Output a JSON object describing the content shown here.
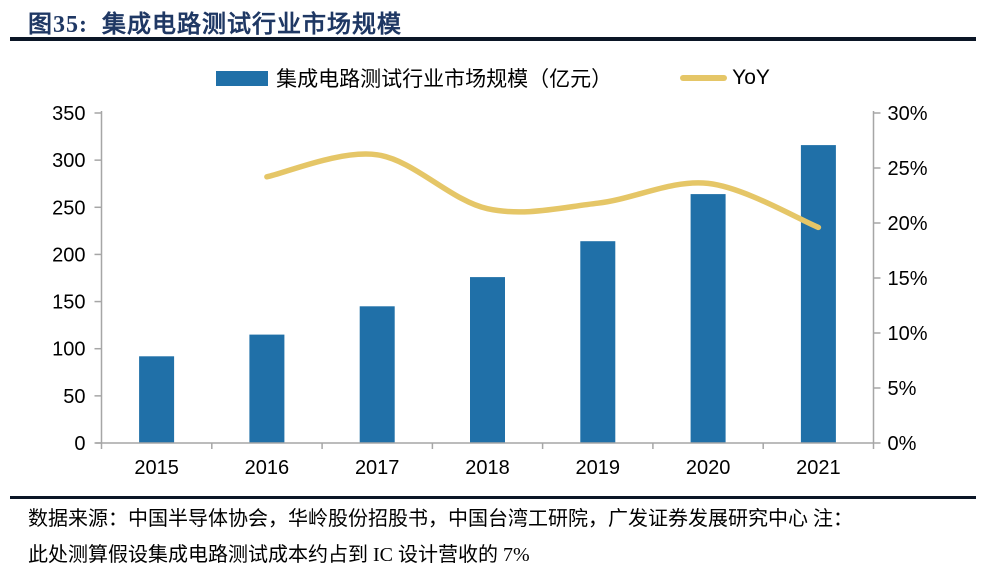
{
  "header": {
    "title_label": "图35:",
    "title_text": "集成电路测试行业市场规模"
  },
  "legend": {
    "bars_label": "集成电路测试行业市场规模（亿元）",
    "line_label": "YoY"
  },
  "chart_data": {
    "type": "bar+line combo",
    "categories": [
      "2015",
      "2016",
      "2017",
      "2018",
      "2019",
      "2020",
      "2021"
    ],
    "series": [
      {
        "name": "集成电路测试行业市场规模（亿元）",
        "type": "bar",
        "axis": "left",
        "values": [
          92,
          115,
          145,
          176,
          214,
          264,
          316
        ]
      },
      {
        "name": "YoY",
        "type": "line",
        "axis": "right",
        "values": [
          null,
          24.2,
          26.2,
          21.3,
          21.8,
          23.6,
          19.6
        ]
      }
    ],
    "left_axis": {
      "min": 0,
      "max": 350,
      "tick_values": [
        0,
        50,
        100,
        150,
        200,
        250,
        300,
        350
      ],
      "tick_labels": [
        "0",
        "50",
        "100",
        "150",
        "200",
        "250",
        "300",
        "350"
      ]
    },
    "right_axis": {
      "min": 0,
      "max": 30,
      "tick_values": [
        0,
        5,
        10,
        15,
        20,
        25,
        30
      ],
      "tick_labels": [
        "0%",
        "5%",
        "10%",
        "15%",
        "20%",
        "25%",
        "30%"
      ]
    },
    "grid": false,
    "legend_position": "top"
  },
  "colors": {
    "bar": "#2070A8",
    "line": "#E5C667",
    "title": "#1F3864",
    "axis_line": "#A6A6A6",
    "tick_text": "#000000",
    "rule": "#0B1626"
  },
  "footer": {
    "line1": "数据来源：中国半导体协会，华岭股份招股书，中国台湾工研院，广发证券发展研究中心 注：",
    "line2": "此处测算假设集成电路测试成本约占到 IC 设计营收的 7%"
  }
}
